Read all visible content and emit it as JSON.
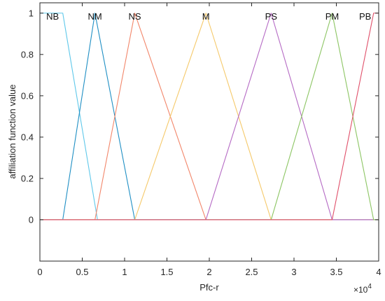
{
  "chart_data": {
    "type": "line",
    "title": "",
    "xlabel": "Pfc-r",
    "ylabel": "affiliation function value",
    "x_exponent_label": "×10",
    "x_exponent_power": "4",
    "xlim": [
      0,
      4
    ],
    "ylim": [
      -0.2,
      1.05
    ],
    "x_ticks": [
      "0",
      "0.5",
      "1",
      "1.5",
      "2",
      "2.5",
      "3",
      "3.5",
      "4"
    ],
    "y_ticks": [
      "0",
      "0.2",
      "0.4",
      "0.6",
      "0.8",
      "1"
    ],
    "grid": false,
    "series": [
      {
        "name": "NB",
        "color": "#5fc8ea",
        "x": [
          0,
          0.27,
          0.68,
          4
        ],
        "y": [
          1,
          1,
          0,
          0
        ]
      },
      {
        "name": "NM",
        "color": "#1f8fc4",
        "x": [
          0,
          0.27,
          0.65,
          1.12,
          4
        ],
        "y": [
          0,
          0,
          1,
          0,
          0
        ]
      },
      {
        "name": "NS",
        "color": "#f2866a",
        "x": [
          0,
          0.65,
          1.12,
          1.96,
          4
        ],
        "y": [
          0,
          0,
          1,
          0,
          0
        ]
      },
      {
        "name": "M",
        "color": "#f5c96a",
        "x": [
          0,
          1.12,
          1.96,
          2.73,
          4
        ],
        "y": [
          0,
          0,
          1,
          0,
          0
        ]
      },
      {
        "name": "PS",
        "color": "#b56ac4",
        "x": [
          0,
          1.96,
          2.73,
          3.45,
          4
        ],
        "y": [
          0,
          0,
          1,
          0,
          0
        ]
      },
      {
        "name": "PM",
        "color": "#8cc563",
        "x": [
          0,
          2.73,
          3.45,
          3.94,
          4
        ],
        "y": [
          0,
          0,
          1,
          0,
          0
        ]
      },
      {
        "name": "PB",
        "color": "#e0506a",
        "x": [
          0,
          3.45,
          3.94,
          4
        ],
        "y": [
          0,
          0,
          1,
          1
        ]
      }
    ],
    "labels": [
      {
        "text": "NB",
        "x": 0.15
      },
      {
        "text": "NM",
        "x": 0.65
      },
      {
        "text": "NS",
        "x": 1.12
      },
      {
        "text": "M",
        "x": 1.96
      },
      {
        "text": "PS",
        "x": 2.73
      },
      {
        "text": "PM",
        "x": 3.45
      },
      {
        "text": "PB",
        "x": 3.84
      }
    ]
  }
}
